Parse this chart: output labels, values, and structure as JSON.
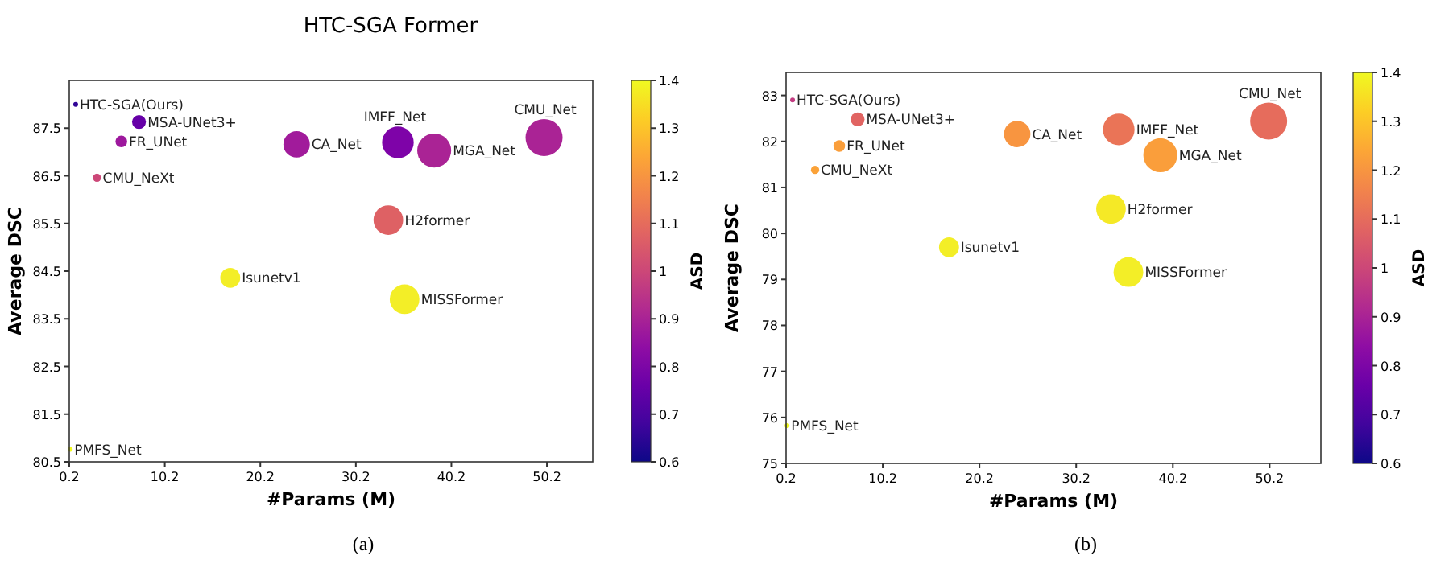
{
  "chart_data": [
    {
      "type": "bubble",
      "title": "HTC-SGA Former",
      "xlabel": "#Params (M)",
      "ylabel": "Average DSC",
      "clabel": "ASD",
      "annotations": [
        "(a)"
      ],
      "xlim": [
        0.2,
        55
      ],
      "xticks": [
        0.2,
        10.2,
        20.2,
        30.2,
        40.2,
        50.2
      ],
      "ylim": [
        80.5,
        88.5
      ],
      "yticks": [
        80.5,
        81.5,
        82.5,
        83.5,
        84.5,
        85.5,
        86.5,
        87.5
      ],
      "clim": [
        0.6,
        1.4
      ],
      "cticks": [
        0.6,
        0.7,
        0.8,
        0.9,
        1.0,
        1.1,
        1.2,
        1.3,
        1.4
      ],
      "series": [
        {
          "name": "HTC-SGA(Ours)",
          "x": [
            0.87
          ],
          "values": [
            88.0
          ],
          "sizes": [
            0.01
          ],
          "cvalues": [
            0.65
          ]
        },
        {
          "name": "MSA-UNet3+",
          "x": [
            7.5
          ],
          "values": [
            87.63
          ],
          "sizes": [
            0.14
          ],
          "cvalues": [
            0.75
          ]
        },
        {
          "name": "FR_UNet",
          "x": [
            5.65
          ],
          "values": [
            87.22
          ],
          "sizes": [
            0.1
          ],
          "cvalues": [
            0.87
          ]
        },
        {
          "name": "CMU_NeXt",
          "x": [
            3.1
          ],
          "values": [
            86.46
          ],
          "sizes": [
            0.05
          ],
          "cvalues": [
            1.0
          ]
        },
        {
          "name": "CA_Net",
          "x": [
            24.0
          ],
          "values": [
            87.16
          ],
          "sizes": [
            0.51
          ],
          "cvalues": [
            0.88
          ]
        },
        {
          "name": "IMFF_Net",
          "x": [
            34.6
          ],
          "values": [
            87.2
          ],
          "sizes": [
            0.73
          ],
          "cvalues": [
            0.8
          ]
        },
        {
          "name": "MGA_Net",
          "x": [
            38.4
          ],
          "values": [
            87.03
          ],
          "sizes": [
            0.84
          ],
          "cvalues": [
            0.9
          ]
        },
        {
          "name": "CMU_Net",
          "x": [
            49.9
          ],
          "values": [
            87.3
          ],
          "sizes": [
            1
          ],
          "cvalues": [
            0.9
          ]
        },
        {
          "name": "H2former",
          "x": [
            33.6
          ],
          "values": [
            85.57
          ],
          "sizes": [
            0.64
          ],
          "cvalues": [
            1.07
          ]
        },
        {
          "name": "Isunetv1",
          "x": [
            17.05
          ],
          "values": [
            84.36
          ],
          "sizes": [
            0.29
          ],
          "cvalues": [
            1.38
          ]
        },
        {
          "name": "MISSFormer",
          "x": [
            35.3
          ],
          "values": [
            83.91
          ],
          "sizes": [
            0.64
          ],
          "cvalues": [
            1.38
          ]
        },
        {
          "name": "PMFS_Net",
          "x": [
            0.3
          ],
          "values": [
            80.76
          ],
          "sizes": [
            0.01
          ],
          "cvalues": [
            1.4
          ]
        }
      ]
    },
    {
      "type": "bubble",
      "xlabel": "#Params (M)",
      "ylabel": "Average DSC",
      "clabel": "ASD",
      "annotations": [
        "(b)"
      ],
      "xlim": [
        0.2,
        55.5
      ],
      "xticks": [
        0.2,
        10.2,
        20.2,
        30.2,
        40.2,
        50.2
      ],
      "ylim": [
        75,
        83.5
      ],
      "yticks": [
        75,
        76,
        77,
        78,
        79,
        80,
        81,
        82,
        83
      ],
      "clim": [
        0.6,
        1.4
      ],
      "cticks": [
        0.6,
        0.7,
        0.8,
        0.9,
        1.0,
        1.1,
        1.2,
        1.3,
        1.4
      ],
      "series": [
        {
          "name": "HTC-SGA(Ours)",
          "x": [
            0.87
          ],
          "values": [
            82.9
          ],
          "sizes": [
            0.01
          ],
          "cvalues": [
            0.97
          ]
        },
        {
          "name": "MSA-UNet3+",
          "x": [
            7.6
          ],
          "values": [
            82.48
          ],
          "sizes": [
            0.14
          ],
          "cvalues": [
            1.08
          ]
        },
        {
          "name": "FR_UNet",
          "x": [
            5.7
          ],
          "values": [
            81.9
          ],
          "sizes": [
            0.1
          ],
          "cvalues": [
            1.22
          ]
        },
        {
          "name": "CMU_NeXt",
          "x": [
            3.2
          ],
          "values": [
            81.38
          ],
          "sizes": [
            0.05
          ],
          "cvalues": [
            1.23
          ]
        },
        {
          "name": "CA_Net",
          "x": [
            24.1
          ],
          "values": [
            82.16
          ],
          "sizes": [
            0.51
          ],
          "cvalues": [
            1.2
          ]
        },
        {
          "name": "IMFF_Net",
          "x": [
            34.6
          ],
          "values": [
            82.26
          ],
          "sizes": [
            0.73
          ],
          "cvalues": [
            1.12
          ]
        },
        {
          "name": "MGA_Net",
          "x": [
            38.9
          ],
          "values": [
            81.7
          ],
          "sizes": [
            0.84
          ],
          "cvalues": [
            1.22
          ]
        },
        {
          "name": "CMU_Net",
          "x": [
            50.1
          ],
          "values": [
            82.44
          ],
          "sizes": [
            1
          ],
          "cvalues": [
            1.1
          ]
        },
        {
          "name": "H2former",
          "x": [
            33.8
          ],
          "values": [
            80.53
          ],
          "sizes": [
            0.64
          ],
          "cvalues": [
            1.37
          ]
        },
        {
          "name": "Isunetv1",
          "x": [
            17.05
          ],
          "values": [
            79.7
          ],
          "sizes": [
            0.29
          ],
          "cvalues": [
            1.38
          ]
        },
        {
          "name": "MISSFormer",
          "x": [
            35.6
          ],
          "values": [
            79.16
          ],
          "sizes": [
            0.64
          ],
          "cvalues": [
            1.38
          ]
        },
        {
          "name": "PMFS_Net",
          "x": [
            0.3
          ],
          "values": [
            75.82
          ],
          "sizes": [
            0.01
          ],
          "cvalues": [
            1.4
          ]
        }
      ]
    }
  ]
}
